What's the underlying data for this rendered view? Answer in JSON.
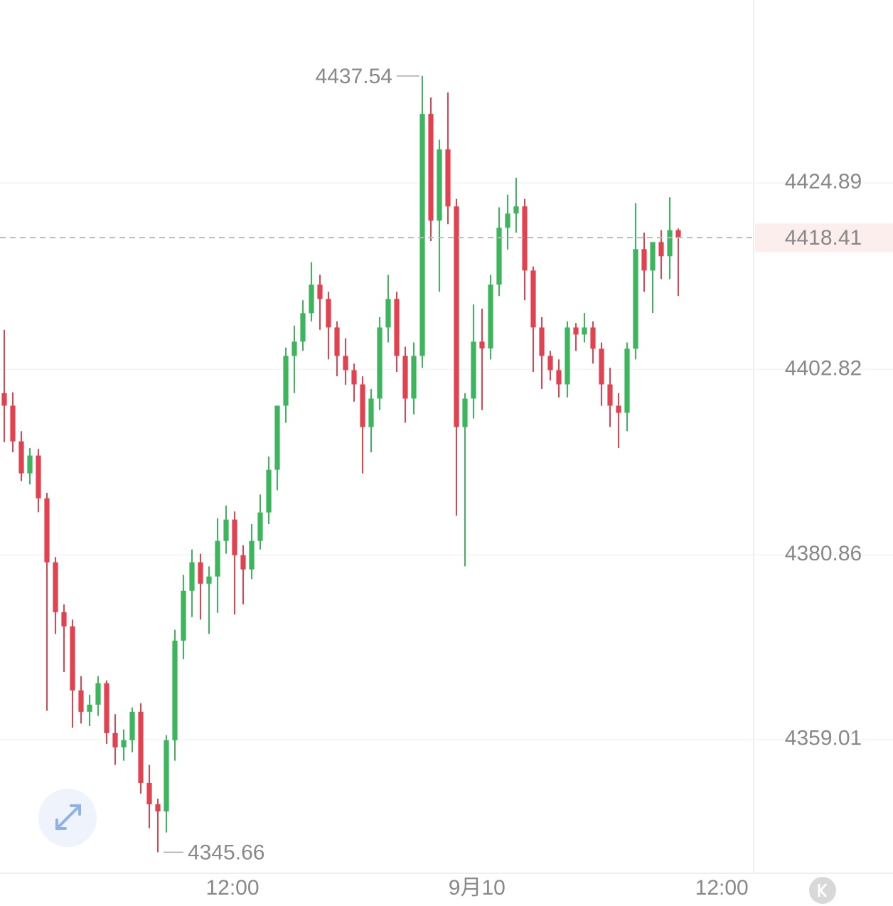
{
  "chart_data": {
    "type": "candlestick",
    "open": [
      4400.0,
      4398.52,
      4394.3,
      4390.51,
      4392.62,
      4387.56,
      4379.98,
      4374.08,
      4372.4,
      4364.82,
      4362.29,
      4363.13,
      4365.66,
      4359.76,
      4358.08,
      4358.92,
      4362.29,
      4353.86,
      4351.34,
      4350.5,
      4358.92,
      4370.71,
      4376.61,
      4379.98,
      4377.45,
      4378.3,
      4382.51,
      4385.04,
      4380.82,
      4379.14,
      4382.51,
      4385.88,
      4390.93,
      4398.52,
      4404.41,
      4406.1,
      4409.47,
      4412.84,
      4411.15,
      4407.78,
      4404.41,
      4402.73,
      4401.04,
      4395.99,
      4399.36,
      4407.78,
      4411.15,
      4404.41,
      4399.36,
      4404.41,
      4433.06,
      4420.42,
      4428.85,
      4422.11,
      4395.99,
      4399.36,
      4406.1,
      4405.3,
      4412.84,
      4419.58,
      4421.26,
      4422.11,
      4414.52,
      4407.78,
      4404.41,
      4402.73,
      4401.04,
      4407.78,
      4406.94,
      4407.78,
      4405.26,
      4401.04,
      4398.52,
      4397.67,
      4405.26,
      4417.05,
      4414.52,
      4417.89,
      4416.21,
      4419.3
    ],
    "high": [
      4407.5,
      4400.1,
      4395.5,
      4393.5,
      4393.4,
      4388.2,
      4380.6,
      4375.0,
      4373.2,
      4366.5,
      4364.3,
      4366.5,
      4366.0,
      4362.0,
      4360.2,
      4362.8,
      4363.3,
      4356.0,
      4352.0,
      4359.5,
      4372.0,
      4378.5,
      4381.5,
      4381.0,
      4379.5,
      4385.2,
      4386.7,
      4386.0,
      4382.0,
      4384.5,
      4388.0,
      4392.5,
      4398.5,
      4405.4,
      4408.0,
      4411.0,
      4415.5,
      4414.0,
      4412.0,
      4408.5,
      4406.5,
      4403.5,
      4402.0,
      4400.5,
      4409.0,
      4414.0,
      4412.0,
      4405.5,
      4406.0,
      4437.54,
      4435.0,
      4430.0,
      4435.6,
      4423.0,
      4400.0,
      4410.5,
      4410.0,
      4414.0,
      4422.0,
      4423.5,
      4425.5,
      4423.0,
      4415.0,
      4409.0,
      4405.0,
      4404.0,
      4408.5,
      4408.3,
      4409.5,
      4408.5,
      4406.0,
      4403.0,
      4400.0,
      4406.0,
      4422.5,
      4419.0,
      4417.5,
      4419.3,
      4423.2,
      4419.5
    ],
    "low": [
      4394.2,
      4393.0,
      4389.6,
      4389.2,
      4385.9,
      4362.4,
      4371.5,
      4367.0,
      4360.4,
      4360.9,
      4360.6,
      4361.8,
      4358.5,
      4356.0,
      4356.5,
      4357.5,
      4352.6,
      4348.5,
      4345.66,
      4348.0,
      4356.5,
      4368.5,
      4373.5,
      4373.2,
      4371.5,
      4374.0,
      4381.0,
      4373.8,
      4375.0,
      4378.0,
      4381.5,
      4384.5,
      4388.5,
      4396.5,
      4400.0,
      4405.0,
      4408.5,
      4407.5,
      4404.0,
      4402.0,
      4401.0,
      4399.0,
      4390.5,
      4393.0,
      4398.0,
      4406.0,
      4402.5,
      4396.5,
      4397.5,
      4403.0,
      4418.0,
      4412.0,
      4420.0,
      4385.5,
      4379.5,
      4397.0,
      4398.0,
      4404.0,
      4411.5,
      4417.0,
      4419.0,
      4411.0,
      4402.5,
      4400.5,
      4401.5,
      4399.5,
      4399.5,
      4405.0,
      4406.0,
      4403.5,
      4398.5,
      4396.0,
      4393.5,
      4395.5,
      4404.0,
      4412.0,
      4409.5,
      4413.5,
      4413.5,
      4411.5
    ],
    "close": [
      4398.52,
      4394.3,
      4390.51,
      4392.62,
      4387.56,
      4379.98,
      4374.08,
      4372.4,
      4364.82,
      4362.29,
      4363.13,
      4365.66,
      4359.76,
      4358.08,
      4358.92,
      4362.29,
      4353.86,
      4351.34,
      4350.5,
      4358.92,
      4370.71,
      4376.61,
      4379.98,
      4377.45,
      4378.3,
      4382.51,
      4385.04,
      4380.82,
      4379.14,
      4382.51,
      4385.88,
      4390.93,
      4398.52,
      4404.41,
      4406.1,
      4409.47,
      4412.84,
      4411.15,
      4407.78,
      4404.41,
      4402.73,
      4401.04,
      4395.99,
      4399.36,
      4407.78,
      4411.15,
      4404.41,
      4399.36,
      4404.41,
      4433.06,
      4420.42,
      4428.85,
      4422.11,
      4395.99,
      4399.36,
      4406.1,
      4405.3,
      4412.84,
      4419.58,
      4421.26,
      4422.11,
      4414.52,
      4407.78,
      4404.41,
      4402.73,
      4401.04,
      4407.78,
      4406.94,
      4407.78,
      4405.26,
      4401.04,
      4398.52,
      4397.67,
      4405.26,
      4417.05,
      4414.52,
      4417.89,
      4416.21,
      4419.3,
      4418.41
    ],
    "up_color": "#3cb55c",
    "down_color": "#e0424f",
    "ylim": [
      4343.17,
      4446.54
    ],
    "yticks": [
      4359.01,
      4380.86,
      4402.82,
      4424.89
    ],
    "xlim": [
      -0.5,
      87.5
    ],
    "xticks": [
      {
        "value": 26.75,
        "label": "12:00"
      },
      {
        "value": 55.4,
        "label": "9月10"
      },
      {
        "value": 84.1,
        "label": "12:00"
      }
    ],
    "grid": true
  }
}
